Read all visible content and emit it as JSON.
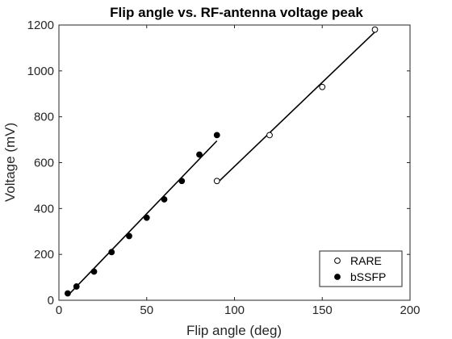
{
  "chart_data": {
    "type": "scatter",
    "title": "Flip angle vs. RF-antenna voltage peak",
    "xlabel": "Flip angle (deg)",
    "ylabel": "Voltage (mV)",
    "xlim": [
      0,
      200
    ],
    "ylim": [
      0,
      1200
    ],
    "xticks": [
      0,
      50,
      100,
      150,
      200
    ],
    "yticks": [
      0,
      200,
      400,
      600,
      800,
      1000,
      1200
    ],
    "grid": false,
    "legend_position": "bottom-right",
    "series": [
      {
        "name": "RARE",
        "marker": "open-circle",
        "x": [
          90,
          120,
          150,
          180
        ],
        "y": [
          520,
          720,
          930,
          1180
        ],
        "fit": {
          "x": [
            90,
            180
          ],
          "y": [
            510,
            1170
          ]
        }
      },
      {
        "name": "bSSFP",
        "marker": "filled-circle",
        "x": [
          5,
          10,
          20,
          30,
          40,
          50,
          60,
          70,
          80,
          90
        ],
        "y": [
          30,
          60,
          125,
          210,
          280,
          360,
          440,
          520,
          635,
          720
        ],
        "fit": {
          "x": [
            5,
            90
          ],
          "y": [
            20,
            695
          ]
        }
      }
    ],
    "colors": {
      "marker": "#000000",
      "axis": "#262626"
    }
  }
}
